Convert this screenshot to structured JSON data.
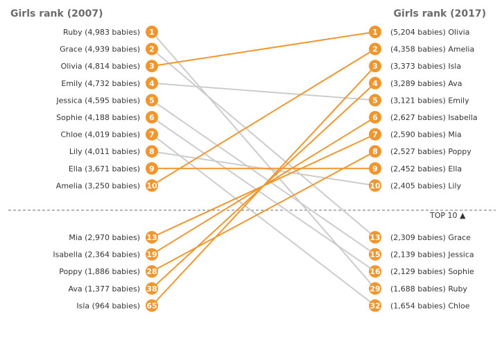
{
  "header": {
    "left_title": "Girls rank (2007)",
    "right_title": "Girls rank (2017)",
    "top10_label": "TOP 10 ▲"
  },
  "colors": {
    "highlight": "#f0962e",
    "muted": "#cccccc",
    "divider": "#888888"
  },
  "chart_data": {
    "type": "slope",
    "left_ranks_top": [
      1,
      2,
      3,
      4,
      5,
      6,
      7,
      8,
      9,
      10
    ],
    "left_ranks_bottom": [
      13,
      19,
      28,
      38,
      65
    ],
    "right_ranks_top": [
      1,
      2,
      3,
      4,
      5,
      6,
      7,
      8,
      9,
      10
    ],
    "right_ranks_bottom": [
      13,
      15,
      16,
      29,
      32
    ],
    "left_labels": {
      "1": "Ruby (4,983 babies)",
      "2": "Grace (4,939 babies)",
      "3": "Olivia (4,814 babies)",
      "4": "Emily (4,732 babies)",
      "5": "Jessica (4,595 babies)",
      "6": "Sophie (4,188 babies)",
      "7": "Chloe (4,019 babies)",
      "8": "Lily (4,011 babies)",
      "9": "Ella (3,671 babies)",
      "10": "Amelia (3,250 babies)",
      "13": "Mia (2,970 babies)",
      "19": "Isabella (2,364 babies)",
      "28": "Poppy (1,886 babies)",
      "38": "Ava (1,377 babies)",
      "65": "Isla (964 babies)"
    },
    "right_labels": {
      "1": "(5,204 babies) Olivia",
      "2": "(4,358 babies) Amelia",
      "3": "(3,373 babies) Isla",
      "4": "(3,289 babies) Ava",
      "5": "(3,121 babies) Emily",
      "6": "(2,627 babies) Isabella",
      "7": "(2,590 babies) Mia",
      "8": "(2,527 babies) Poppy",
      "9": "(2,452 babies) Ella",
      "10": "(2,405 babies) Lily",
      "13": "(2,309 babies) Grace",
      "15": "(2,139 babies) Jessica",
      "16": "(2,129 babies) Sophie",
      "29": "(1,688 babies) Ruby",
      "32": "(1,654 babies) Chloe"
    },
    "names": [
      {
        "name": "Olivia",
        "rank_2007": 3,
        "babies_2007": 4814,
        "rank_2017": 1,
        "babies_2017": 5204,
        "highlight": true
      },
      {
        "name": "Amelia",
        "rank_2007": 10,
        "babies_2007": 3250,
        "rank_2017": 2,
        "babies_2017": 4358,
        "highlight": true
      },
      {
        "name": "Isla",
        "rank_2007": 65,
        "babies_2007": 964,
        "rank_2017": 3,
        "babies_2017": 3373,
        "highlight": true
      },
      {
        "name": "Ava",
        "rank_2007": 38,
        "babies_2007": 1377,
        "rank_2017": 4,
        "babies_2017": 3289,
        "highlight": true
      },
      {
        "name": "Emily",
        "rank_2007": 4,
        "babies_2007": 4732,
        "rank_2017": 5,
        "babies_2017": 3121,
        "highlight": false
      },
      {
        "name": "Isabella",
        "rank_2007": 19,
        "babies_2007": 2364,
        "rank_2017": 6,
        "babies_2017": 2627,
        "highlight": true
      },
      {
        "name": "Mia",
        "rank_2007": 13,
        "babies_2007": 2970,
        "rank_2017": 7,
        "babies_2017": 2590,
        "highlight": true
      },
      {
        "name": "Poppy",
        "rank_2007": 28,
        "babies_2007": 1886,
        "rank_2017": 8,
        "babies_2017": 2527,
        "highlight": true
      },
      {
        "name": "Ella",
        "rank_2007": 9,
        "babies_2007": 3671,
        "rank_2017": 9,
        "babies_2017": 2452,
        "highlight": true
      },
      {
        "name": "Lily",
        "rank_2007": 8,
        "babies_2007": 4011,
        "rank_2017": 10,
        "babies_2017": 2405,
        "highlight": false
      },
      {
        "name": "Grace",
        "rank_2007": 2,
        "babies_2007": 4939,
        "rank_2017": 13,
        "babies_2017": 2309,
        "highlight": false
      },
      {
        "name": "Jessica",
        "rank_2007": 5,
        "babies_2007": 4595,
        "rank_2017": 15,
        "babies_2017": 2139,
        "highlight": false
      },
      {
        "name": "Sophie",
        "rank_2007": 6,
        "babies_2007": 4188,
        "rank_2017": 16,
        "babies_2017": 2129,
        "highlight": false
      },
      {
        "name": "Ruby",
        "rank_2007": 1,
        "babies_2007": 4983,
        "rank_2017": 29,
        "babies_2017": 1688,
        "highlight": false
      },
      {
        "name": "Chloe",
        "rank_2007": 7,
        "babies_2007": 4019,
        "rank_2017": 32,
        "babies_2017": 1654,
        "highlight": false
      }
    ]
  }
}
